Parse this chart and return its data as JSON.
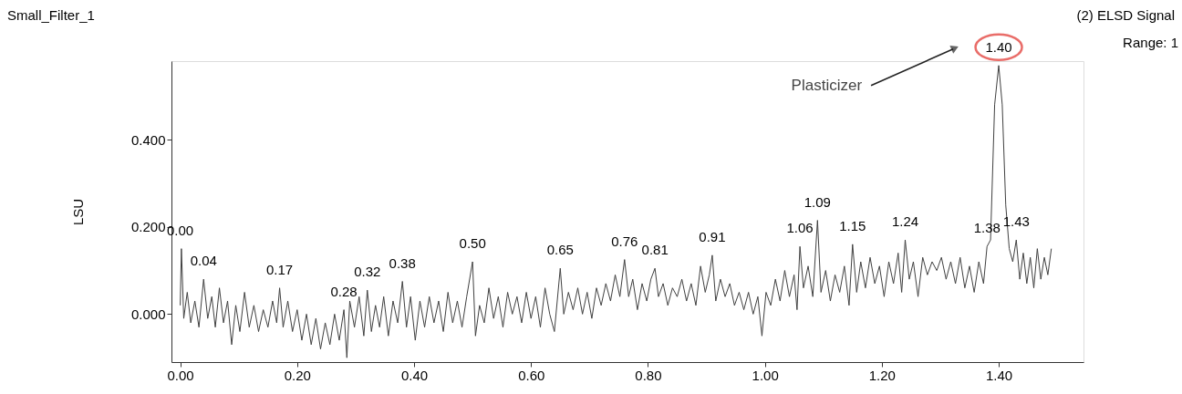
{
  "chart_data": {
    "type": "line",
    "title": "Small_Filter_1",
    "ylabel": "LSU",
    "xlim": [
      -0.015,
      1.545
    ],
    "ylim": [
      -0.11,
      0.58
    ],
    "xticks": [
      {
        "value": 0,
        "label": "0.00"
      },
      {
        "value": 0.2,
        "label": "0.20"
      },
      {
        "value": 0.4,
        "label": "0.40"
      },
      {
        "value": 0.6,
        "label": "0.60"
      },
      {
        "value": 0.8,
        "label": "0.80"
      },
      {
        "value": 1.0,
        "label": "1.00"
      },
      {
        "value": 1.2,
        "label": "1.20"
      },
      {
        "value": 1.4,
        "label": "1.40"
      }
    ],
    "yticks": [
      {
        "value": 0,
        "label": "0.000"
      },
      {
        "value": 0.2,
        "label": "0.200"
      },
      {
        "value": 0.4,
        "label": "0.400"
      }
    ],
    "grid": false,
    "marker": "none",
    "line_style": "solid",
    "series": [
      {
        "color": "#404040",
        "x": [
          0.0,
          0.002,
          0.006,
          0.012,
          0.018,
          0.025,
          0.032,
          0.04,
          0.047,
          0.054,
          0.06,
          0.067,
          0.074,
          0.081,
          0.088,
          0.095,
          0.102,
          0.11,
          0.118,
          0.126,
          0.134,
          0.142,
          0.15,
          0.158,
          0.165,
          0.17,
          0.176,
          0.184,
          0.192,
          0.2,
          0.208,
          0.216,
          0.224,
          0.232,
          0.24,
          0.248,
          0.256,
          0.264,
          0.272,
          0.28,
          0.285,
          0.29,
          0.298,
          0.306,
          0.314,
          0.32,
          0.327,
          0.334,
          0.341,
          0.348,
          0.356,
          0.364,
          0.372,
          0.38,
          0.387,
          0.394,
          0.402,
          0.41,
          0.418,
          0.426,
          0.434,
          0.442,
          0.45,
          0.458,
          0.466,
          0.474,
          0.482,
          0.49,
          0.5,
          0.505,
          0.512,
          0.52,
          0.528,
          0.536,
          0.544,
          0.552,
          0.56,
          0.568,
          0.576,
          0.584,
          0.592,
          0.6,
          0.608,
          0.616,
          0.624,
          0.632,
          0.64,
          0.65,
          0.656,
          0.664,
          0.672,
          0.68,
          0.688,
          0.696,
          0.704,
          0.712,
          0.72,
          0.728,
          0.736,
          0.744,
          0.752,
          0.76,
          0.767,
          0.774,
          0.782,
          0.79,
          0.798,
          0.805,
          0.812,
          0.818,
          0.826,
          0.834,
          0.842,
          0.85,
          0.858,
          0.866,
          0.874,
          0.882,
          0.89,
          0.898,
          0.905,
          0.91,
          0.916,
          0.924,
          0.932,
          0.94,
          0.948,
          0.956,
          0.964,
          0.972,
          0.98,
          0.988,
          0.995,
          1.002,
          1.01,
          1.018,
          1.026,
          1.034,
          1.042,
          1.05,
          1.055,
          1.06,
          1.066,
          1.074,
          1.082,
          1.09,
          1.096,
          1.104,
          1.112,
          1.12,
          1.128,
          1.136,
          1.144,
          1.15,
          1.157,
          1.164,
          1.172,
          1.18,
          1.188,
          1.196,
          1.204,
          1.212,
          1.22,
          1.228,
          1.234,
          1.24,
          1.247,
          1.254,
          1.262,
          1.27,
          1.278,
          1.286,
          1.294,
          1.302,
          1.31,
          1.318,
          1.326,
          1.334,
          1.342,
          1.35,
          1.358,
          1.366,
          1.374,
          1.38,
          1.386,
          1.393,
          1.4,
          1.406,
          1.412,
          1.418,
          1.424,
          1.43,
          1.436,
          1.442,
          1.448,
          1.454,
          1.46,
          1.466,
          1.472,
          1.478,
          1.484,
          1.49
        ],
        "values": [
          0.02,
          0.15,
          -0.01,
          0.05,
          -0.02,
          0.03,
          -0.03,
          0.08,
          -0.01,
          0.04,
          -0.03,
          0.06,
          -0.02,
          0.03,
          -0.07,
          0.02,
          -0.04,
          0.05,
          -0.03,
          0.02,
          -0.04,
          0.01,
          -0.03,
          0.03,
          -0.02,
          0.06,
          -0.03,
          0.03,
          -0.04,
          0.01,
          -0.06,
          0.0,
          -0.07,
          -0.01,
          -0.08,
          -0.02,
          -0.07,
          0.0,
          -0.06,
          0.01,
          -0.1,
          0.03,
          -0.03,
          0.04,
          -0.05,
          0.055,
          -0.04,
          0.02,
          -0.03,
          0.04,
          -0.05,
          0.03,
          -0.02,
          0.075,
          -0.03,
          0.04,
          -0.06,
          0.03,
          -0.03,
          0.04,
          -0.02,
          0.03,
          -0.04,
          0.05,
          -0.02,
          0.03,
          -0.03,
          0.04,
          0.12,
          -0.05,
          0.02,
          -0.02,
          0.06,
          -0.01,
          0.04,
          -0.03,
          0.05,
          0.0,
          0.04,
          -0.02,
          0.05,
          -0.01,
          0.04,
          -0.03,
          0.06,
          0.0,
          -0.04,
          0.105,
          0.0,
          0.05,
          0.01,
          0.06,
          0.0,
          0.05,
          -0.01,
          0.06,
          0.02,
          0.07,
          0.03,
          0.09,
          0.04,
          0.125,
          0.04,
          0.08,
          0.01,
          0.07,
          0.03,
          0.08,
          0.105,
          0.04,
          0.07,
          0.02,
          0.06,
          0.04,
          0.08,
          0.03,
          0.07,
          0.02,
          0.11,
          0.05,
          0.09,
          0.135,
          0.03,
          0.08,
          0.04,
          0.07,
          0.02,
          0.05,
          0.01,
          0.05,
          0.0,
          0.04,
          -0.05,
          0.05,
          0.02,
          0.08,
          0.03,
          0.1,
          0.04,
          0.09,
          0.01,
          0.155,
          0.06,
          0.11,
          0.04,
          0.215,
          0.05,
          0.1,
          0.03,
          0.09,
          0.05,
          0.11,
          0.02,
          0.16,
          0.05,
          0.12,
          0.06,
          0.13,
          0.07,
          0.11,
          0.04,
          0.12,
          0.07,
          0.14,
          0.05,
          0.17,
          0.08,
          0.12,
          0.04,
          0.13,
          0.09,
          0.12,
          0.1,
          0.13,
          0.08,
          0.12,
          0.07,
          0.13,
          0.06,
          0.11,
          0.05,
          0.12,
          0.07,
          0.155,
          0.17,
          0.48,
          0.57,
          0.48,
          0.25,
          0.15,
          0.12,
          0.17,
          0.08,
          0.14,
          0.07,
          0.13,
          0.06,
          0.15,
          0.08,
          0.13,
          0.09,
          0.15
        ]
      }
    ],
    "annotations": [
      {
        "text": "0.00",
        "x": 0.0,
        "y": 0.15
      },
      {
        "text": "0.04",
        "x": 0.04,
        "y": 0.08
      },
      {
        "text": "0.17",
        "x": 0.17,
        "y": 0.06
      },
      {
        "text": "0.28",
        "x": 0.28,
        "y": 0.01
      },
      {
        "text": "0.32",
        "x": 0.32,
        "y": 0.055
      },
      {
        "text": "0.38",
        "x": 0.38,
        "y": 0.075
      },
      {
        "text": "0.50",
        "x": 0.5,
        "y": 0.12
      },
      {
        "text": "0.65",
        "x": 0.65,
        "y": 0.105
      },
      {
        "text": "0.76",
        "x": 0.76,
        "y": 0.125
      },
      {
        "text": "0.81",
        "x": 0.812,
        "y": 0.105
      },
      {
        "text": "0.91",
        "x": 0.91,
        "y": 0.135
      },
      {
        "text": "1.06",
        "x": 1.06,
        "y": 0.155
      },
      {
        "text": "1.09",
        "x": 1.09,
        "y": 0.215
      },
      {
        "text": "1.15",
        "x": 1.15,
        "y": 0.16
      },
      {
        "text": "1.24",
        "x": 1.24,
        "y": 0.17
      },
      {
        "text": "1.38",
        "x": 1.38,
        "y": 0.155
      },
      {
        "text": "1.40",
        "x": 1.4,
        "y": 0.57
      },
      {
        "text": "1.43",
        "x": 1.43,
        "y": 0.17
      },
      "Plasticizer",
      "(2) ELSD Signal",
      "Range: 1"
    ]
  }
}
